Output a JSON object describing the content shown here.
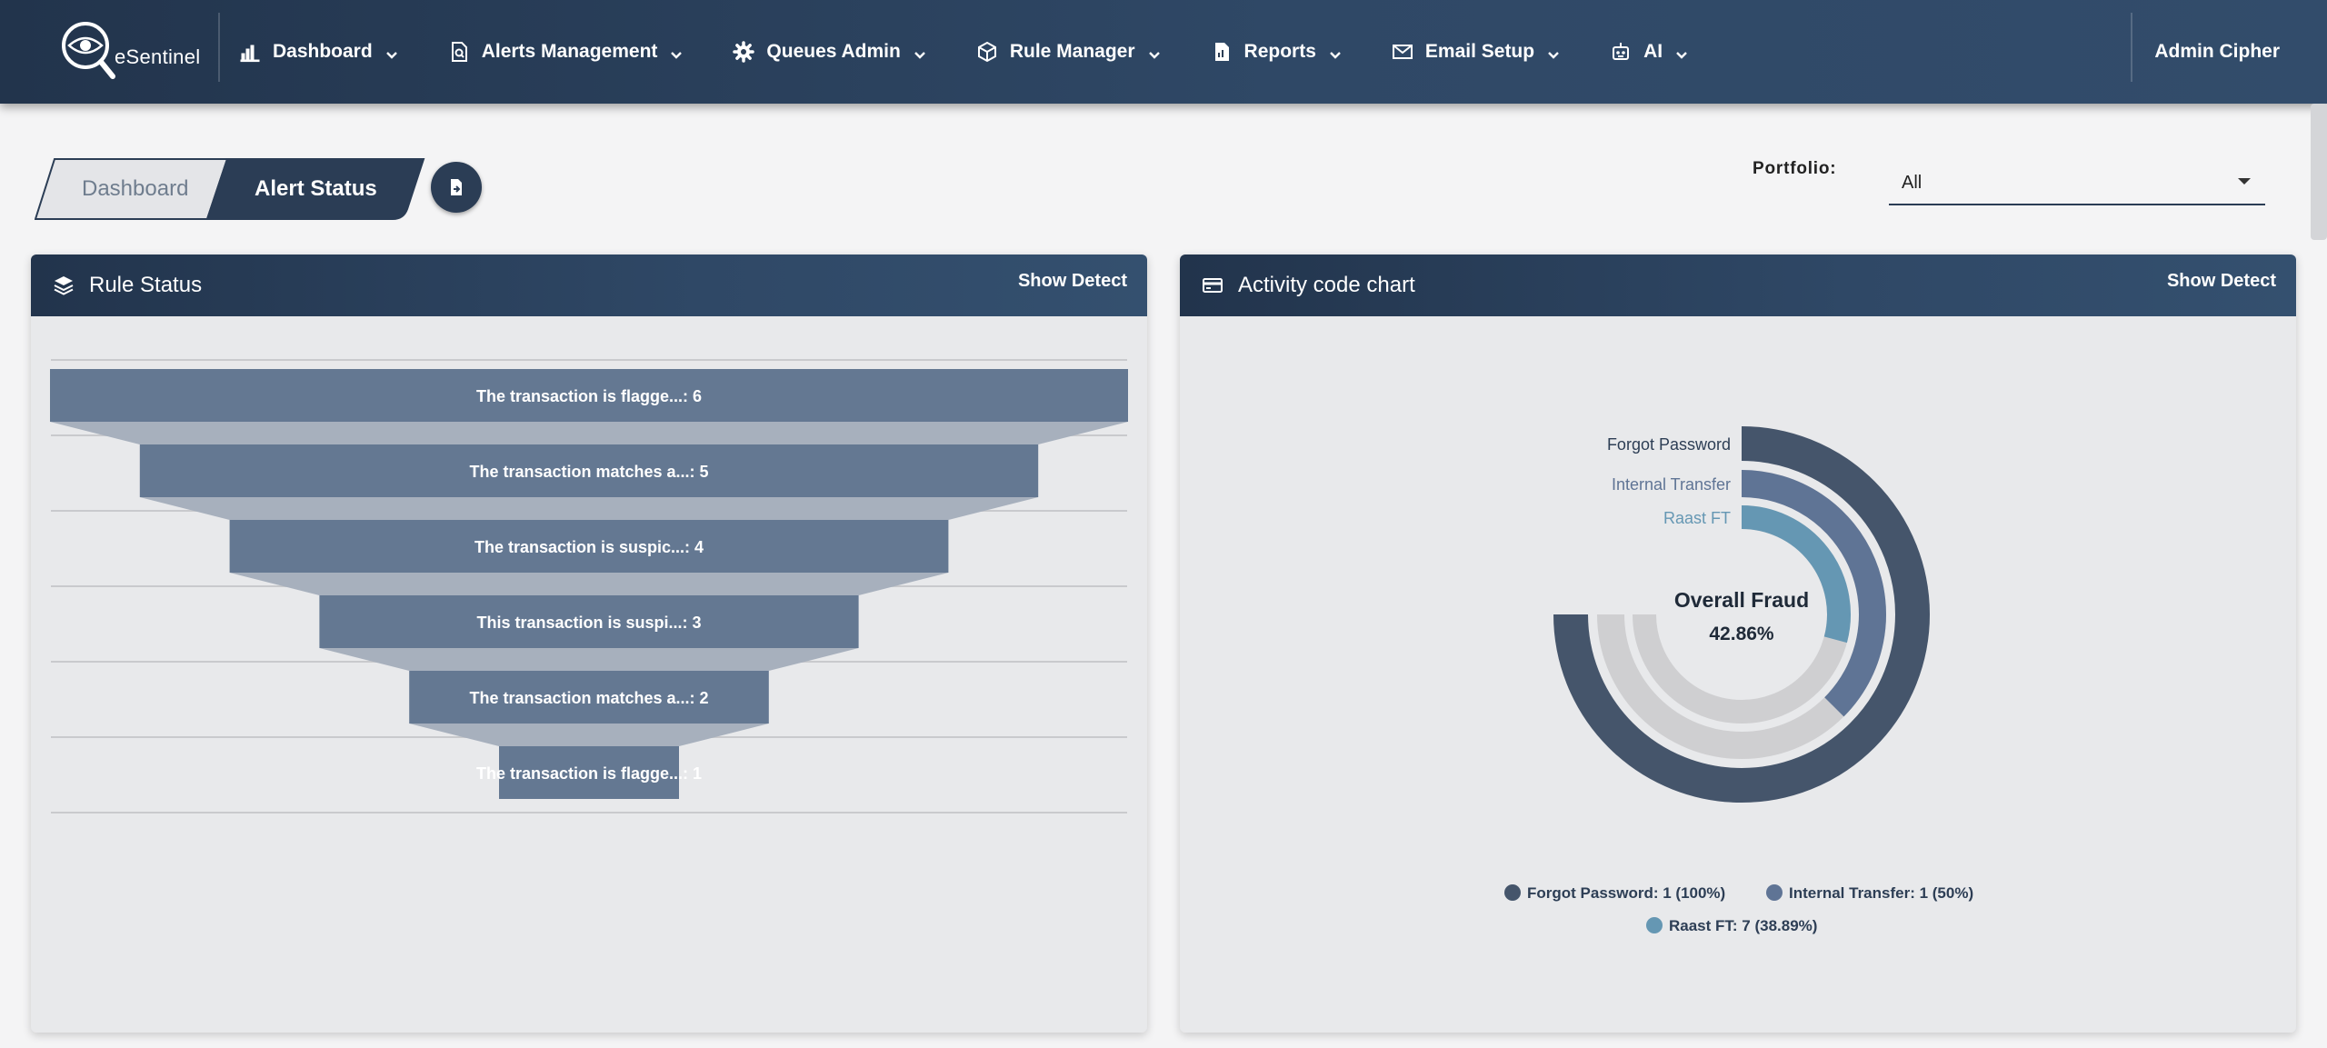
{
  "app": {
    "logo_text": "eSentinel",
    "user_name": "Admin Cipher"
  },
  "nav": [
    {
      "label": "Dashboard",
      "icon": "bar-chart-icon"
    },
    {
      "label": "Alerts Management",
      "icon": "file-search-icon"
    },
    {
      "label": "Queues Admin",
      "icon": "gear-icon"
    },
    {
      "label": "Rule Manager",
      "icon": "cube-icon"
    },
    {
      "label": "Reports",
      "icon": "report-file-icon"
    },
    {
      "label": "Email Setup",
      "icon": "envelope-icon"
    },
    {
      "label": "AI",
      "icon": "robot-icon"
    }
  ],
  "breadcrumb": {
    "items": [
      "Dashboard",
      "Alert Status"
    ]
  },
  "portfolio": {
    "label": "Portfolio:",
    "value": "All"
  },
  "cards": {
    "rule_status": {
      "title": "Rule Status",
      "action": "Show Detect",
      "icon": "layers-icon"
    },
    "activity": {
      "title": "Activity code chart",
      "action": "Show Detect",
      "icon": "credit-card-icon"
    }
  },
  "colors": {
    "nav_bg": "#2b3d55",
    "funnel_bar": "#647892",
    "funnel_neck": "#a7b0bd",
    "ring_outer": "#45556b",
    "ring_mid": "#5f7495",
    "ring_inner": "#6597b3",
    "ring_track": "#cfcfd1"
  },
  "chart_data": [
    {
      "type": "funnel",
      "categories": [
        "The transaction is flagge...",
        "The transaction matches a...",
        "The transaction is suspic...",
        "This transaction is suspi...",
        "The transaction matches a...",
        "The transaction is flagge..."
      ],
      "values": [
        6,
        5,
        4,
        3,
        2,
        1
      ]
    },
    {
      "type": "radial-bar",
      "center_title": "Overall Fraud",
      "center_value": "42.86%",
      "series": [
        {
          "name": "Forgot Password",
          "count": 1,
          "percent": 100,
          "legend": "Forgot Password: 1 (100%)",
          "color": "#45556b"
        },
        {
          "name": "Internal Transfer",
          "count": 1,
          "percent": 50,
          "legend": "Internal Transfer: 1 (50%)",
          "color": "#5f7495"
        },
        {
          "name": "Raast FT",
          "count": 7,
          "percent": 38.89,
          "legend": "Raast FT: 7 (38.89%)",
          "color": "#6597b3"
        }
      ]
    }
  ]
}
